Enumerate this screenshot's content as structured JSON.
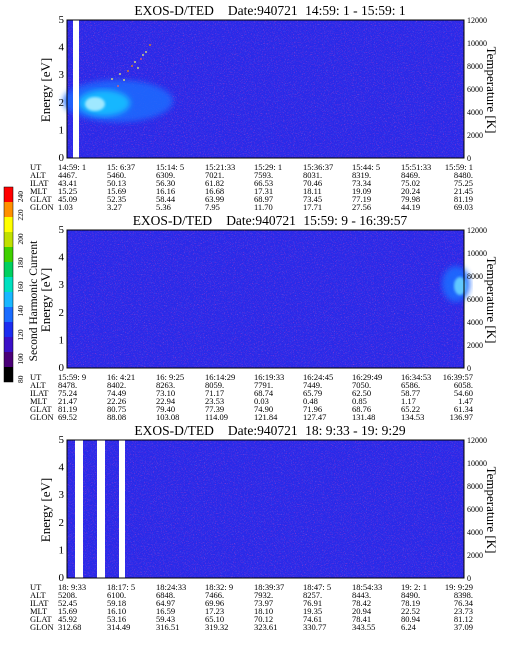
{
  "chart_data": [
    {
      "type": "heatmap",
      "instrument": "EXOS-D/TED",
      "date_label": "Date:940721",
      "time_range": "14:59: 1 - 15:59: 1",
      "ylabel": "Energy [eV]",
      "ylim": [
        0,
        5
      ],
      "yticks": [
        "0",
        "1",
        "2",
        "3",
        "4",
        "5"
      ],
      "y2label": "Temperature [K]",
      "y2lim": [
        0,
        12000
      ],
      "y2ticks": [
        "0",
        "2000",
        "4000",
        "6000",
        "8000",
        "10000",
        "12000"
      ],
      "features": [
        {
          "kind": "data-gap",
          "time_frac": [
            0.015,
            0.055
          ]
        },
        {
          "kind": "enhancement",
          "time_frac": [
            0.06,
            0.25
          ],
          "energy_eV": [
            1.0,
            2.7
          ],
          "peak_energy_eV": 1.9,
          "level": 150
        },
        {
          "kind": "speckle",
          "time_frac": [
            0.18,
            0.32
          ],
          "energy_eV": [
            2.2,
            4.8
          ]
        }
      ],
      "table": {
        "labels": [
          "UT",
          "ALT",
          "ILAT",
          "MLT",
          "GLAT",
          "GLON"
        ],
        "columns": [
          [
            "14:59: 1",
            "4467.",
            "43.41",
            "15.25",
            "45.09",
            "1.03"
          ],
          [
            "15: 6:37",
            "5460.",
            "50.13",
            "15.69",
            "52.35",
            "3.27"
          ],
          [
            "15:14: 5",
            "6309.",
            "56.30",
            "16.16",
            "58.44",
            "5.36"
          ],
          [
            "15:21:33",
            "7021.",
            "61.82",
            "16.68",
            "63.99",
            "7.95"
          ],
          [
            "15:29: 1",
            "7593.",
            "66.53",
            "17.31",
            "68.97",
            "11.70"
          ],
          [
            "15:36:37",
            "8031.",
            "70.46",
            "18.11",
            "73.45",
            "17.71"
          ],
          [
            "15:44: 5",
            "8319.",
            "73.34",
            "19.09",
            "77.19",
            "27.56"
          ],
          [
            "15:51:33",
            "8469.",
            "75.02",
            "20.24",
            "79.98",
            "44.19"
          ],
          [
            "15:59: 1",
            "8480.",
            "75.25",
            "21.45",
            "81.19",
            "69.03"
          ]
        ]
      }
    },
    {
      "type": "heatmap",
      "instrument": "EXOS-D/TED",
      "date_label": "Date:940721",
      "time_range": "15:59: 9 - 16:39:57",
      "ylabel": "Energy [eV]",
      "ylim": [
        0,
        5
      ],
      "yticks": [
        "0",
        "1",
        "2",
        "3",
        "4",
        "5"
      ],
      "y2label": "Temperature [K]",
      "y2lim": [
        0,
        12000
      ],
      "y2ticks": [
        "0",
        "2000",
        "4000",
        "6000",
        "8000",
        "10000",
        "12000"
      ],
      "features": [
        {
          "kind": "enhancement",
          "time_frac": [
            0.93,
            1.0
          ],
          "energy_eV": [
            2.6,
            3.9
          ],
          "peak_energy_eV": 3.3,
          "level": 130
        }
      ],
      "table": {
        "labels": [
          "UT",
          "ALT",
          "ILAT",
          "MLT",
          "GLAT",
          "GLON"
        ],
        "columns": [
          [
            "15:59: 9",
            "8478.",
            "75.24",
            "21.47",
            "81.19",
            "69.52"
          ],
          [
            "16: 4:21",
            "8402.",
            "74.49",
            "22.26",
            "80.75",
            "88.08"
          ],
          [
            "16: 9:25",
            "8263.",
            "73.10",
            "22.94",
            "79.40",
            "103.08"
          ],
          [
            "16:14:29",
            "8059.",
            "71.17",
            "23.53",
            "77.39",
            "114.09"
          ],
          [
            "16:19:33",
            "7791.",
            "68.74",
            "0.03",
            "74.90",
            "121.84"
          ],
          [
            "16:24:45",
            "7449.",
            "65.79",
            "0.48",
            "71.96",
            "127.47"
          ],
          [
            "16:29:49",
            "7050.",
            "62.50",
            "0.85",
            "68.76",
            "131.48"
          ],
          [
            "16:34:53",
            "6586.",
            "58.77",
            "1.17",
            "65.22",
            "134.53"
          ],
          [
            "16:39:57",
            "6058.",
            "54.60",
            "1.47",
            "61.34",
            "136.97"
          ]
        ]
      }
    },
    {
      "type": "heatmap",
      "instrument": "EXOS-D/TED",
      "date_label": "Date:940721",
      "time_range": "18: 9:33 - 19: 9:29",
      "ylabel": "Energy [eV]",
      "ylim": [
        0,
        5
      ],
      "yticks": [
        "0",
        "1",
        "2",
        "3",
        "4",
        "5"
      ],
      "y2label": "Temperature [K]",
      "y2lim": [
        0,
        12000
      ],
      "y2ticks": [
        "0",
        "2000",
        "4000",
        "6000",
        "8000",
        "10000",
        "12000"
      ],
      "features": [
        {
          "kind": "data-gap",
          "time_frac": [
            0.02,
            0.04
          ]
        },
        {
          "kind": "data-gap",
          "time_frac": [
            0.075,
            0.095
          ]
        },
        {
          "kind": "data-gap",
          "time_frac": [
            0.13,
            0.145
          ]
        }
      ],
      "table": {
        "labels": [
          "UT",
          "ALT",
          "ILAT",
          "MLT",
          "GLAT",
          "GLON"
        ],
        "columns": [
          [
            "18: 9:33",
            "5208.",
            "52.45",
            "15.69",
            "45.92",
            "312.68"
          ],
          [
            "18:17: 5",
            "6100.",
            "59.18",
            "16.10",
            "53.16",
            "314.49"
          ],
          [
            "18:24:33",
            "6848.",
            "64.97",
            "16.59",
            "59.43",
            "316.51"
          ],
          [
            "18:32: 9",
            "7466.",
            "69.96",
            "17.23",
            "65.10",
            "319.32"
          ],
          [
            "18:39:37",
            "7932.",
            "73.97",
            "18.10",
            "70.12",
            "323.61"
          ],
          [
            "18:47: 5",
            "8257.",
            "76.91",
            "19.35",
            "74.61",
            "330.77"
          ],
          [
            "18:54:33",
            "8443.",
            "78.42",
            "20.94",
            "78.41",
            "343.55"
          ],
          [
            "19: 2: 1",
            "8490.",
            "78.19",
            "22.52",
            "80.94",
            "6.24"
          ],
          [
            "19: 9:29",
            "8398.",
            "76.34",
            "23.73",
            "81.12",
            "37.09"
          ]
        ]
      }
    }
  ],
  "colorbar": {
    "label": "Second Harmonic Current",
    "ticks": [
      "80",
      "100",
      "120",
      "140",
      "160",
      "180",
      "200",
      "220",
      "240"
    ],
    "range": [
      80,
      240
    ],
    "colors": [
      "#000000",
      "#4a0078",
      "#3a10c8",
      "#1c2cf0",
      "#1a6cff",
      "#19b7ff",
      "#00e0c0",
      "#00d060",
      "#40d000",
      "#c0e000",
      "#ffff00",
      "#ff9000",
      "#ff0000"
    ]
  }
}
